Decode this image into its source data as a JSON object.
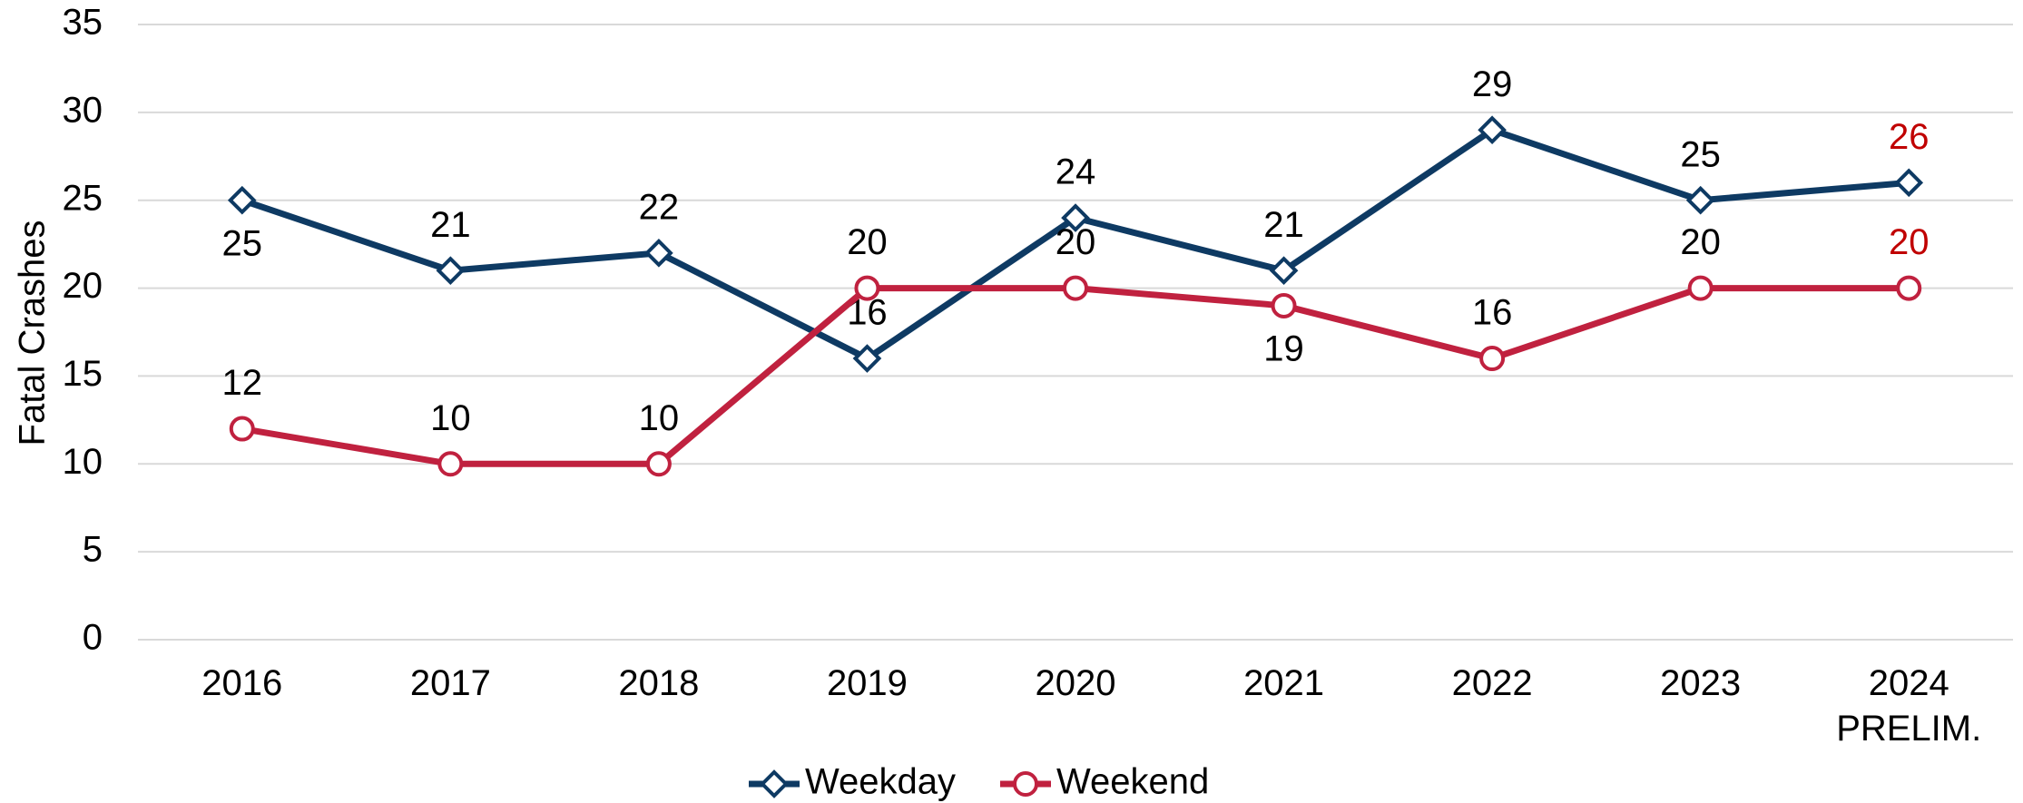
{
  "chart_data": {
    "type": "line",
    "y_label": "Fatal Crashes",
    "categories": [
      "2016",
      "2017",
      "2018",
      "2019",
      "2020",
      "2021",
      "2022",
      "2023",
      "2024\nPRELIM."
    ],
    "series": [
      {
        "name": "Weekday",
        "color": "#0e3a63",
        "marker": "diamond",
        "values": [
          25,
          21,
          22,
          16,
          24,
          21,
          29,
          25,
          26
        ]
      },
      {
        "name": "Weekend",
        "color": "#c0213f",
        "marker": "circle",
        "values": [
          12,
          10,
          10,
          20,
          20,
          19,
          16,
          20,
          20
        ]
      }
    ],
    "ylim": [
      0,
      35
    ],
    "yticks": [
      0,
      5,
      10,
      15,
      20,
      25,
      30,
      35
    ],
    "grid": true,
    "legend": "bottom",
    "last_label_color": "#c00000"
  }
}
